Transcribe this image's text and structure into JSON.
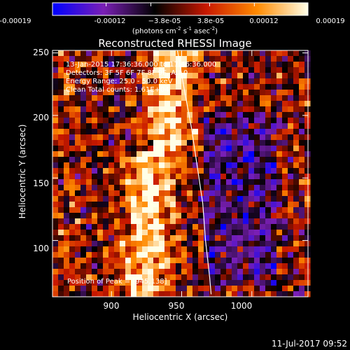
{
  "colorbar": {
    "ticks": [
      "-0.00019",
      "-0.00012",
      "−3.8e-05",
      "3.8e-05",
      "0.00012",
      "0.00019"
    ],
    "unit_text": "(photons cm",
    "unit_sup1": "-2",
    "unit_s": " s",
    "unit_sup2": "-1",
    "unit_asec": " asec",
    "unit_sup3": "-2",
    "unit_end": ")",
    "stops": [
      "#0000ff",
      "#7a1fb5",
      "#000000",
      "#c81800",
      "#ff8a00",
      "#ffffe8"
    ]
  },
  "info": {
    "line1": "13-Jan-2015 17:36:36.000 to 17:46:36.000",
    "line2": "Detectors: 3F 5F 6F 7F 8F 9F, Att 0",
    "line3": "Energy Range: 25.0 - 50.0 keV",
    "line4": "Clean     Total counts: 1.61E+04",
    "peak": "Position of Peak = [945,138]"
  },
  "date_stamp": "11-Jul-2017 09:52",
  "chart_data": {
    "type": "heatmap",
    "title": "Reconstructed RHESSI Image",
    "xlabel": "Heliocentric X (arcsec)",
    "ylabel": "Heliocentric Y (arcsec)",
    "xlim": [
      858,
      1040
    ],
    "ylim": [
      55,
      252
    ],
    "x_ticks": [
      900,
      950,
      1000
    ],
    "y_ticks": [
      100,
      150,
      200,
      250
    ],
    "x_tick_labels": [
      "900",
      "950",
      "1000"
    ],
    "y_tick_labels": [
      "100",
      "150",
      "200",
      "250"
    ],
    "value_range": [
      -0.00019,
      0.00019
    ],
    "peak_position": [
      945,
      138
    ],
    "limb_curve": [
      [
        947,
        252
      ],
      [
        952,
        220
      ],
      [
        957,
        190
      ],
      [
        961,
        160
      ],
      [
        965,
        130
      ],
      [
        967,
        100
      ],
      [
        970,
        70
      ],
      [
        971,
        57
      ]
    ],
    "grid": false
  }
}
